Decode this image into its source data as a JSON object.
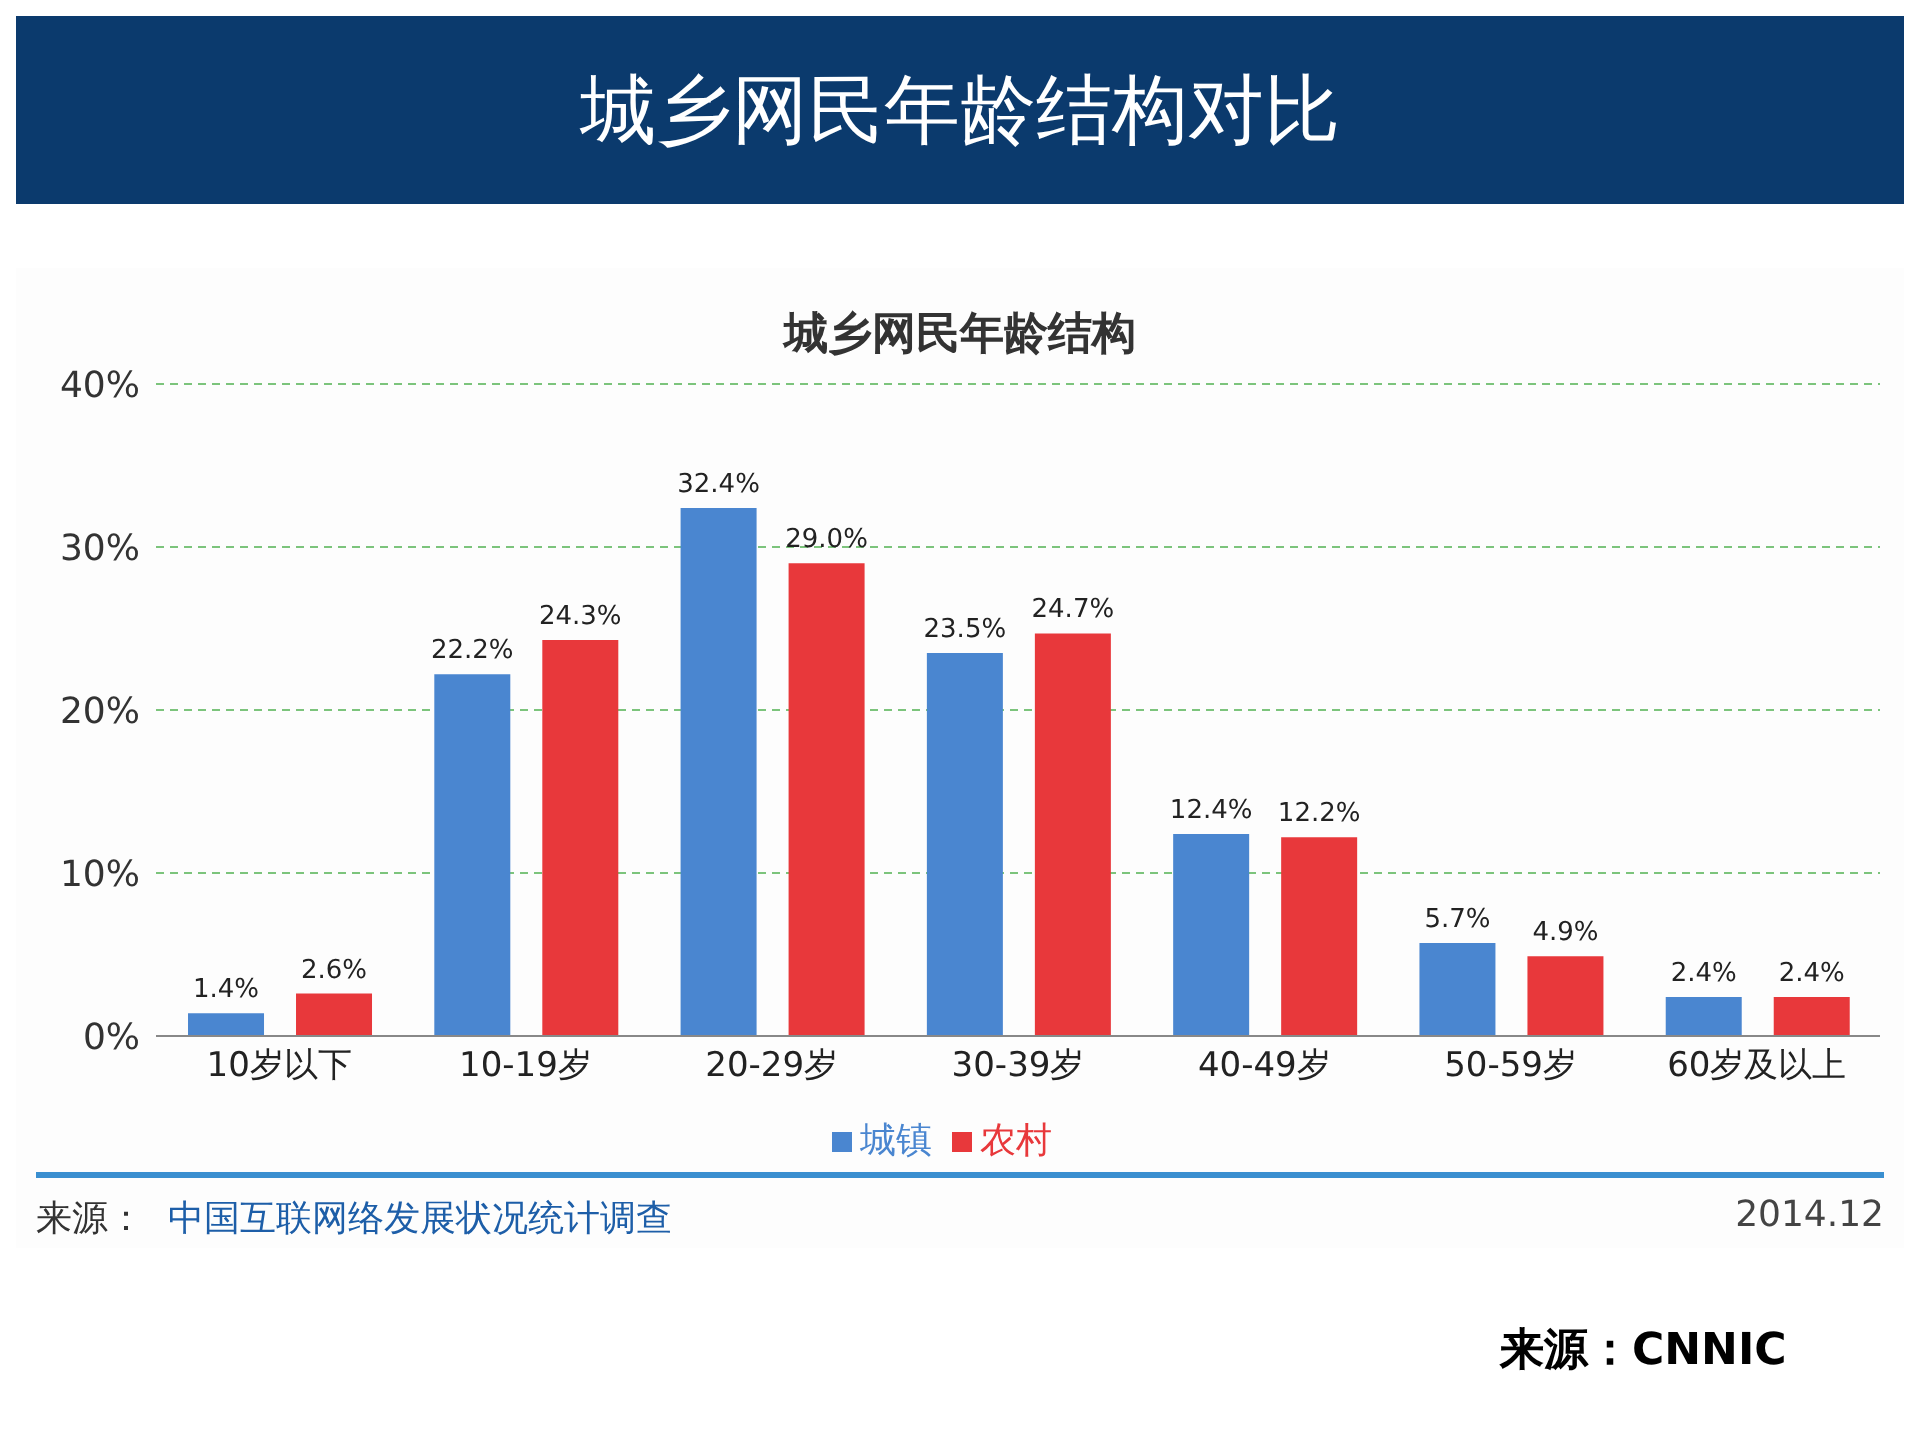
{
  "chart_data": {
    "type": "bar",
    "title": "城乡网民年龄结构对比",
    "subtitle": "城乡网民年龄结构",
    "categories": [
      "10岁以下",
      "10-19岁",
      "20-29岁",
      "30-39岁",
      "40-49岁",
      "50-59岁",
      "60岁及以上"
    ],
    "series": [
      {
        "name": "城镇",
        "color": "#4a86d0",
        "values": [
          1.4,
          22.2,
          32.4,
          23.5,
          12.4,
          5.7,
          2.4
        ],
        "value_labels": [
          "1.4%",
          "22.2%",
          "32.4%",
          "23.5%",
          "12.4%",
          "5.7%",
          "2.4%"
        ]
      },
      {
        "name": "农村",
        "color": "#e8383b",
        "values": [
          2.6,
          24.3,
          29.0,
          24.7,
          12.2,
          4.9,
          2.4
        ],
        "value_labels": [
          "2.6%",
          "24.3%",
          "29.0%",
          "24.7%",
          "12.2%",
          "4.9%",
          "2.4%"
        ]
      }
    ],
    "ylim": [
      0,
      40
    ],
    "yticks": [
      {
        "value": 0,
        "label": "0%"
      },
      {
        "value": 10,
        "label": "10%"
      },
      {
        "value": 20,
        "label": "20%"
      },
      {
        "value": 30,
        "label": "30%"
      },
      {
        "value": 40,
        "label": "40%"
      }
    ],
    "grid": "y",
    "legend": "bottom",
    "annotations": [
      "来源：",
      "中国互联网络发展状况统计调查",
      "2014.12",
      "来源：CNNIC"
    ]
  }
}
